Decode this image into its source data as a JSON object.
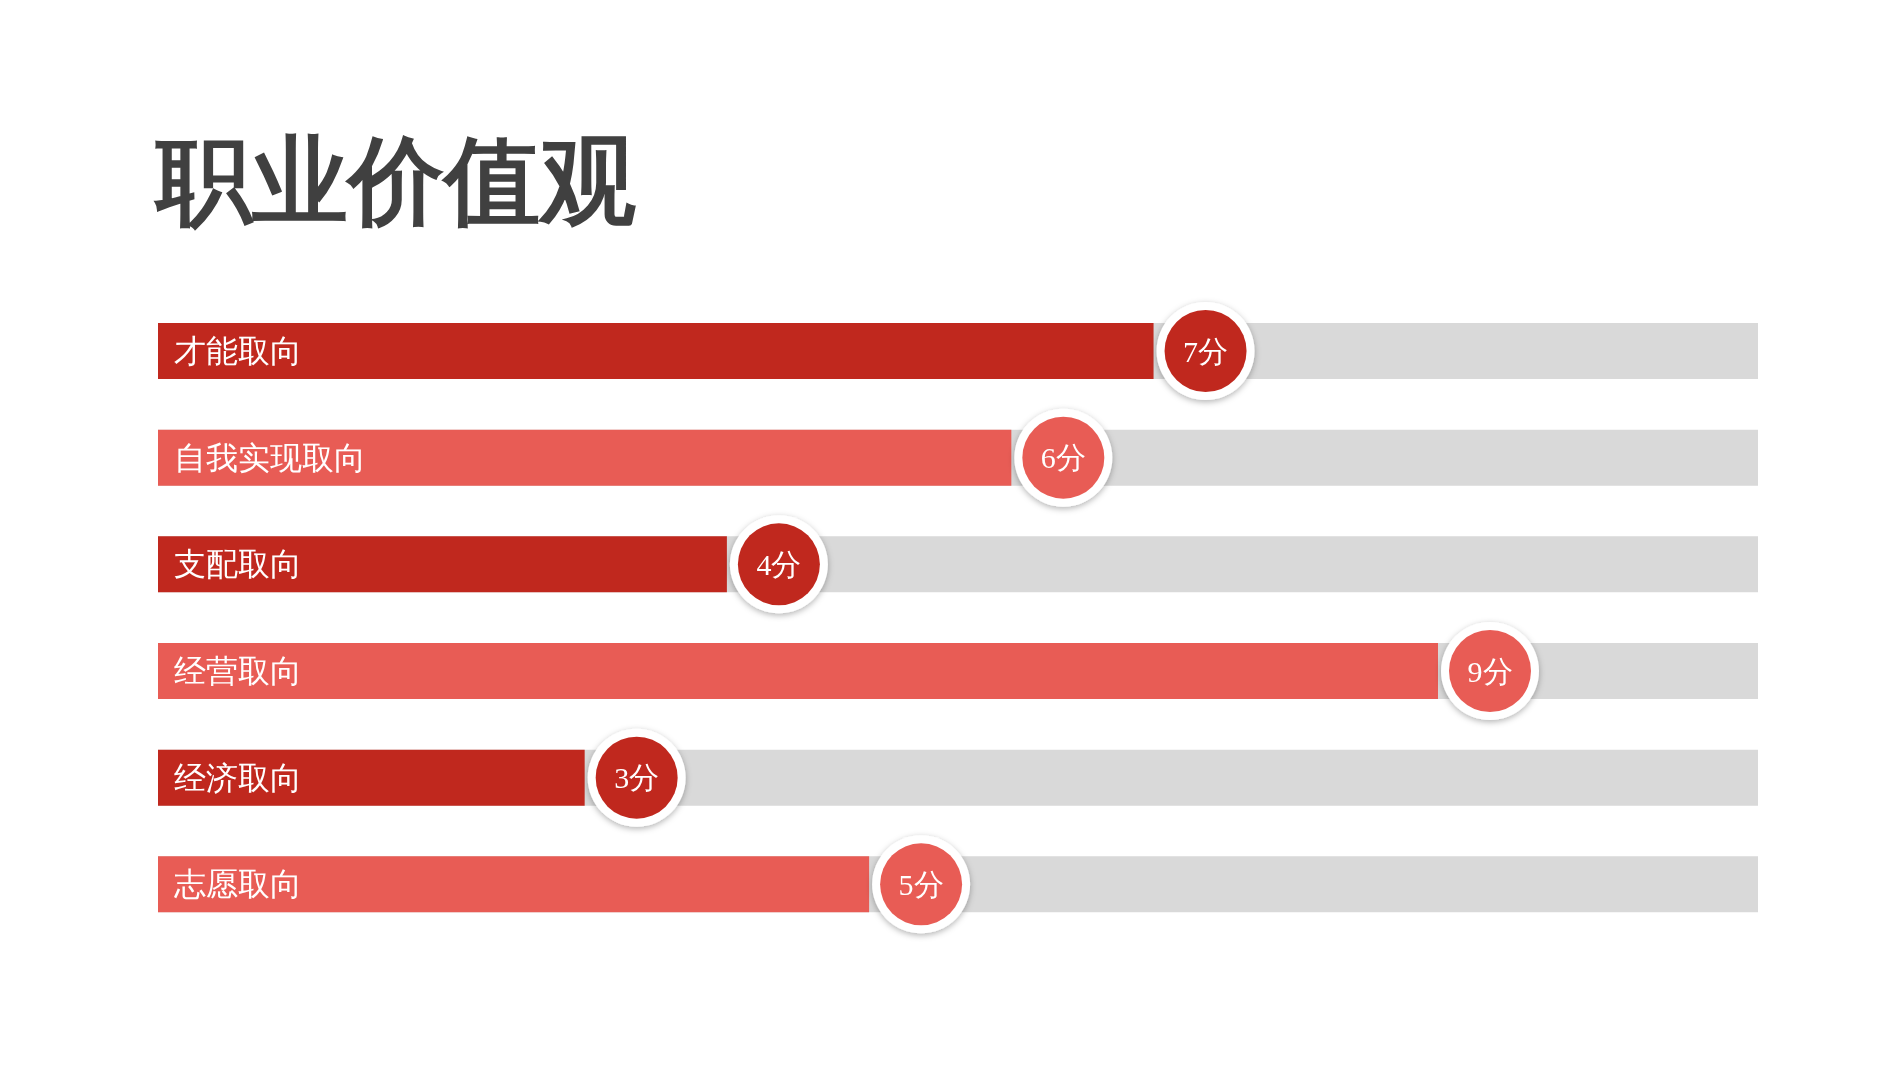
{
  "chart_data": {
    "type": "bar",
    "orientation": "horizontal",
    "title": "职业价值观",
    "categories": [
      "才能取向",
      "自我实现取向",
      "支配取向",
      "经营取向",
      "经济取向",
      "志愿取向"
    ],
    "values": [
      7,
      6,
      4,
      9,
      3,
      5
    ],
    "value_labels": [
      "7分",
      "6分",
      "4分",
      "9分",
      "3分",
      "5分"
    ],
    "colors": [
      "#c0281e",
      "#e85c55",
      "#c0281e",
      "#e85c55",
      "#c0281e",
      "#e85c55"
    ],
    "grid": false,
    "legend": false
  }
}
